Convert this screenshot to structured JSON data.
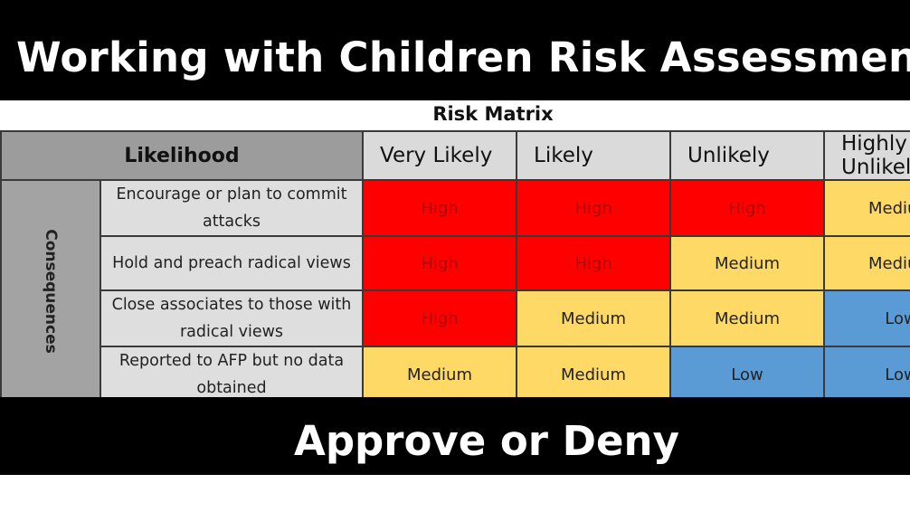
{
  "title": "Working with Children Risk Assessment",
  "subtitle": "Approve or Deny",
  "matrix": {
    "title": "Risk Matrix",
    "likelihood_label": "Likelihood",
    "consequences_label": "Consequences",
    "columns": [
      "Very Likely",
      "Likely",
      "Unlikely",
      "Highly Unlikely"
    ],
    "rows": [
      {
        "label": "Encourage or plan to commit attacks",
        "cells": [
          "High",
          "High",
          "High",
          "Medium"
        ]
      },
      {
        "label": "Hold and preach radical views",
        "cells": [
          "High",
          "High",
          "Medium",
          "Medium"
        ]
      },
      {
        "label": "Close associates to those with radical views",
        "cells": [
          "High",
          "Medium",
          "Medium",
          "Low"
        ]
      },
      {
        "label": "Reported to AFP but no data obtained",
        "cells": [
          "Medium",
          "Medium",
          "Low",
          "Low"
        ]
      }
    ]
  },
  "colors": {
    "high": "#ff0000",
    "medium": "#ffd966",
    "low": "#5b9bd5",
    "banner": "#000000"
  }
}
